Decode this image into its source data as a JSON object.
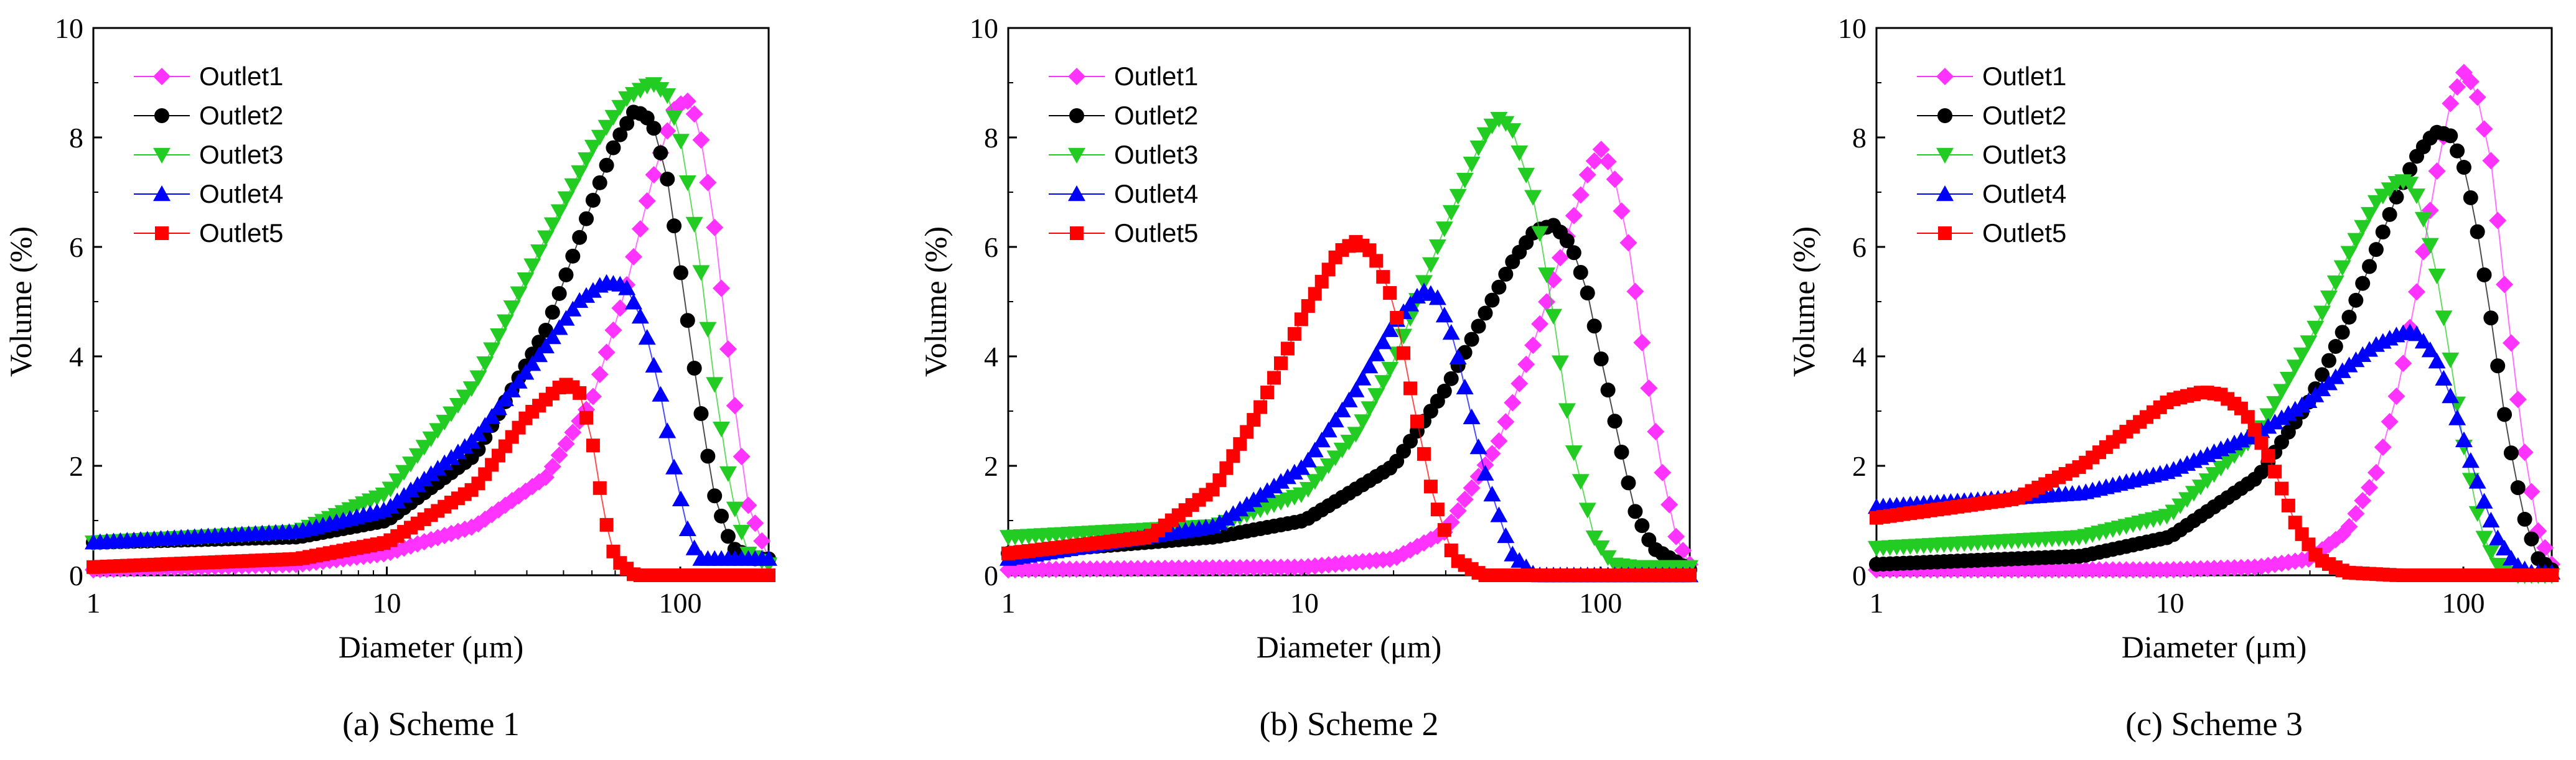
{
  "chart_data": [
    {
      "type": "line",
      "caption": "(a) Scheme 1",
      "xlabel": "Diameter (μm)",
      "ylabel": "Volume (%)",
      "xscale": "log",
      "xlim": [
        1,
        200
      ],
      "ylim": [
        0,
        10
      ],
      "xticks": [
        1,
        10,
        100
      ],
      "yticks": [
        0,
        2,
        4,
        6,
        8,
        10
      ],
      "legend": "top-left",
      "series": [
        {
          "name": "Outlet1",
          "color": "#ff33ff",
          "marker": "diamond",
          "x": [
            1,
            5,
            10,
            20,
            35,
            50,
            65,
            80,
            95,
            105,
            115,
            130,
            150,
            170,
            200
          ],
          "y": [
            0.1,
            0.2,
            0.4,
            0.9,
            1.8,
            3.2,
            5.2,
            7.2,
            8.5,
            8.7,
            8.3,
            6.5,
            3.5,
            1.3,
            0.3
          ]
        },
        {
          "name": "Outlet2",
          "color": "#000000",
          "marker": "circle",
          "x": [
            1,
            5,
            10,
            20,
            35,
            50,
            60,
            70,
            80,
            90,
            100,
            115,
            130,
            150,
            180,
            200
          ],
          "y": [
            0.6,
            0.7,
            1.0,
            2.2,
            4.5,
            6.8,
            7.9,
            8.5,
            8.3,
            7.3,
            5.6,
            3.3,
            1.5,
            0.5,
            0.3,
            0.3
          ]
        },
        {
          "name": "Outlet3",
          "color": "#22cc22",
          "marker": "triangle-down",
          "x": [
            1,
            5,
            10,
            20,
            35,
            50,
            65,
            80,
            90,
            100,
            115,
            130,
            150,
            170,
            200
          ],
          "y": [
            0.6,
            0.8,
            1.5,
            3.5,
            6.2,
            7.8,
            8.7,
            9.0,
            8.8,
            8.0,
            6.0,
            3.6,
            1.4,
            0.4,
            0.2
          ]
        },
        {
          "name": "Outlet4",
          "color": "#0000ff",
          "marker": "triangle",
          "x": [
            1,
            5,
            10,
            20,
            35,
            45,
            55,
            65,
            75,
            85,
            95,
            105,
            115
          ],
          "y": [
            0.6,
            0.8,
            1.2,
            2.5,
            4.2,
            5.0,
            5.35,
            5.3,
            4.6,
            3.4,
            2.0,
            0.9,
            0.3
          ]
        },
        {
          "name": "Outlet5",
          "color": "#ff0000",
          "marker": "square",
          "x": [
            1,
            5,
            10,
            20,
            30,
            40,
            45,
            50,
            55,
            60,
            70
          ],
          "y": [
            0.15,
            0.3,
            0.6,
            1.6,
            2.9,
            3.5,
            3.4,
            2.5,
            1.1,
            0.3,
            0.0
          ]
        }
      ]
    },
    {
      "type": "line",
      "caption": "(b) Scheme 2",
      "xlabel": "Diameter (μm)",
      "ylabel": "Volume (%)",
      "xscale": "log",
      "xlim": [
        1,
        200
      ],
      "ylim": [
        0,
        10
      ],
      "xticks": [
        1,
        10,
        100
      ],
      "yticks": [
        0,
        2,
        4,
        6,
        8,
        10
      ],
      "legend": "top-left",
      "series": [
        {
          "name": "Outlet1",
          "color": "#ff33ff",
          "marker": "diamond",
          "x": [
            1,
            10,
            20,
            30,
            45,
            60,
            75,
            90,
            100,
            110,
            125,
            140,
            160,
            180,
            200
          ],
          "y": [
            0.1,
            0.15,
            0.3,
            0.8,
            2.4,
            4.3,
            6.0,
            7.3,
            7.8,
            7.4,
            6.0,
            4.0,
            2.0,
            0.7,
            0.2
          ]
        },
        {
          "name": "Outlet2",
          "color": "#000000",
          "marker": "circle",
          "x": [
            1,
            5,
            10,
            20,
            30,
            40,
            50,
            60,
            70,
            80,
            90,
            100,
            115,
            130,
            150,
            200
          ],
          "y": [
            0.4,
            0.7,
            1.0,
            2.0,
            3.4,
            4.7,
            5.7,
            6.3,
            6.4,
            6.0,
            5.2,
            4.0,
            2.5,
            1.2,
            0.5,
            0.1
          ]
        },
        {
          "name": "Outlet3",
          "color": "#22cc22",
          "marker": "triangle-down",
          "x": [
            1,
            5,
            10,
            15,
            20,
            30,
            40,
            45,
            50,
            60,
            70,
            80,
            95,
            110,
            130,
            200
          ],
          "y": [
            0.7,
            0.9,
            1.5,
            2.6,
            3.9,
            6.4,
            8.0,
            8.35,
            8.2,
            6.8,
            4.6,
            2.4,
            0.7,
            0.2,
            0.15,
            0.15
          ]
        },
        {
          "name": "Outlet4",
          "color": "#0000ff",
          "marker": "triangle",
          "x": [
            1,
            5,
            10,
            15,
            20,
            25,
            28,
            32,
            40,
            50,
            60
          ],
          "y": [
            0.3,
            0.9,
            2.0,
            3.4,
            4.6,
            5.2,
            5.1,
            4.3,
            2.0,
            0.4,
            0.0
          ]
        },
        {
          "name": "Outlet5",
          "color": "#ff0000",
          "marker": "square",
          "x": [
            1,
            3,
            5,
            7,
            10,
            13,
            15,
            17,
            20,
            23,
            27,
            32,
            40
          ],
          "y": [
            0.4,
            0.7,
            1.6,
            3.0,
            4.8,
            5.9,
            6.1,
            5.9,
            5.0,
            3.3,
            1.5,
            0.3,
            0.0
          ]
        }
      ]
    },
    {
      "type": "line",
      "caption": "(c) Scheme 3",
      "xlabel": "Diameter (μm)",
      "ylabel": "Volume (%)",
      "xscale": "log",
      "xlim": [
        1,
        200
      ],
      "ylim": [
        0,
        10
      ],
      "xticks": [
        1,
        10,
        100
      ],
      "yticks": [
        0,
        2,
        4,
        6,
        8,
        10
      ],
      "legend": "top-left",
      "series": [
        {
          "name": "Outlet1",
          "color": "#ff33ff",
          "marker": "diamond",
          "x": [
            1,
            10,
            20,
            30,
            40,
            50,
            60,
            70,
            80,
            90,
            100,
            110,
            125,
            140,
            160,
            180,
            200
          ],
          "y": [
            0.1,
            0.1,
            0.15,
            0.3,
            0.8,
            1.8,
            3.4,
            5.3,
            7.2,
            8.6,
            9.2,
            8.9,
            7.5,
            5.0,
            2.4,
            0.8,
            0.2
          ]
        },
        {
          "name": "Outlet2",
          "color": "#000000",
          "marker": "circle",
          "x": [
            1,
            5,
            10,
            20,
            30,
            40,
            50,
            60,
            70,
            80,
            90,
            100,
            110,
            125,
            140,
            160,
            180,
            200
          ],
          "y": [
            0.2,
            0.35,
            0.7,
            1.8,
            3.2,
            4.6,
            5.9,
            7.0,
            7.7,
            8.1,
            8.05,
            7.5,
            6.5,
            4.6,
            2.7,
            1.1,
            0.3,
            0.1
          ]
        },
        {
          "name": "Outlet3",
          "color": "#22cc22",
          "marker": "triangle-down",
          "x": [
            1,
            5,
            10,
            20,
            30,
            40,
            50,
            60,
            65,
            70,
            80,
            90,
            100,
            115,
            130,
            150
          ],
          "y": [
            0.5,
            0.7,
            1.1,
            2.6,
            4.3,
            5.8,
            6.8,
            7.2,
            7.2,
            6.9,
            5.7,
            4.0,
            2.4,
            0.8,
            0.2,
            0.0
          ]
        },
        {
          "name": "Outlet4",
          "color": "#0000ff",
          "marker": "triangle",
          "x": [
            1,
            5,
            10,
            20,
            30,
            40,
            50,
            60,
            65,
            70,
            80,
            90,
            100,
            115,
            130,
            150,
            170
          ],
          "y": [
            1.25,
            1.5,
            1.9,
            2.6,
            3.2,
            3.8,
            4.2,
            4.4,
            4.45,
            4.4,
            4.0,
            3.3,
            2.5,
            1.5,
            0.7,
            0.2,
            0.05
          ]
        },
        {
          "name": "Outlet5",
          "color": "#ff0000",
          "marker": "square",
          "x": [
            1,
            3,
            5,
            7,
            10,
            13,
            15,
            18,
            22,
            27,
            32,
            40,
            60,
            100,
            200
          ],
          "y": [
            1.05,
            1.4,
            2.0,
            2.6,
            3.2,
            3.35,
            3.3,
            3.0,
            2.1,
            0.9,
            0.3,
            0.05,
            0.0,
            0.0,
            0.0
          ]
        }
      ]
    }
  ]
}
